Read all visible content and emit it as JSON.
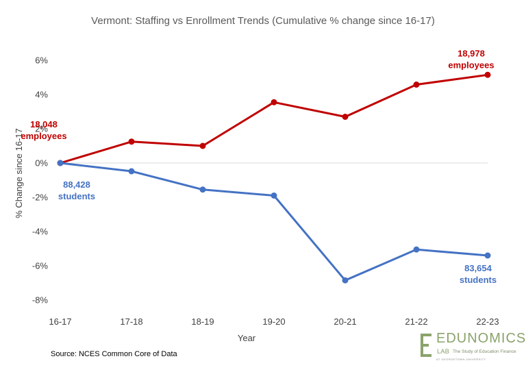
{
  "chart_data": {
    "type": "line",
    "title": "Vermont: Staffing vs Enrollment Trends (Cumulative % change since 16-17)",
    "xlabel": "Year",
    "ylabel": "% Change since 16-17",
    "categories": [
      "16-17",
      "17-18",
      "18-19",
      "19-20",
      "20-21",
      "21-22",
      "22-23"
    ],
    "ylim": [
      -8,
      6
    ],
    "yticks": [
      -8,
      -6,
      -4,
      -2,
      0,
      2,
      4,
      6
    ],
    "ytick_labels": [
      "-8%",
      "-6%",
      "-4%",
      "-2%",
      "0%",
      "2%",
      "4%",
      "6%"
    ],
    "grid": "zero line only",
    "series": [
      {
        "key": "employees",
        "color": "#c00000",
        "values": [
          0,
          1.25,
          1.0,
          3.55,
          2.7,
          4.58,
          5.15
        ]
      },
      {
        "key": "students",
        "color": "#4472c4",
        "values": [
          0,
          -0.48,
          -1.55,
          -1.9,
          -6.85,
          -5.05,
          -5.4
        ]
      }
    ],
    "annotations": [
      {
        "series": "employees",
        "index": 0,
        "line1": "18,048",
        "line2": "employees",
        "color": "#c00000"
      },
      {
        "series": "employees",
        "index": 6,
        "line1": "18,978",
        "line2": "employees",
        "color": "#c00000"
      },
      {
        "series": "students",
        "index": 0,
        "line1": "88,428",
        "line2": "students",
        "color": "#4472c4"
      },
      {
        "series": "students",
        "index": 6,
        "line1": "83,654",
        "line2": "students",
        "color": "#4472c4"
      }
    ]
  },
  "source": "Source: NCES Common Core of Data",
  "logo": {
    "name": "EDUNOMICS",
    "lab": "LAB",
    "tagline": "The Study of Education Finance",
    "footer": "AT GEORGETOWN UNIVERSITY"
  }
}
